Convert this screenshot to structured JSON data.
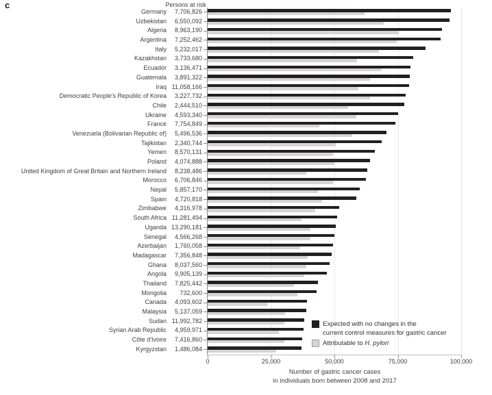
{
  "figure": {
    "panel_label": "c",
    "column_header": "Persons at risk"
  },
  "chart_data": {
    "type": "bar",
    "orientation": "horizontal",
    "panel_label": "c",
    "column_header": "Persons at risk",
    "xlabel_line1": "Number of gastric cancer cases",
    "xlabel_line2": "in individuals born between 2008 and 2017",
    "xlim": [
      0,
      100000
    ],
    "xticks": [
      0,
      25000,
      50000,
      75000,
      100000
    ],
    "xtick_labels": [
      "0",
      "25,000",
      "50,000",
      "75,000",
      "100,000"
    ],
    "grid": "vertical light gridlines at each x tick",
    "legend_position": "bottom-right inside plot",
    "series_names": [
      "Expected with no changes in the current control measures for gastric cancer",
      "Attributable to H. pylori"
    ],
    "legend": [
      {
        "line1": "Expected with no changes in the",
        "line2": "current control measures for gastric cancer",
        "color": "#231f20"
      },
      {
        "prefix": "Attributable to",
        "italic": "H. pylori",
        "color": "#d4d4d4"
      }
    ],
    "colors": {
      "expected": "#231f20",
      "attributable": "#d4d4d4",
      "gridline": "#e8e8e8",
      "axis": "#8a8a8a",
      "text": "#3d3d3d"
    },
    "rows": [
      {
        "name": "Germany",
        "persons_at_risk": "7,706,826",
        "expected": 96000,
        "attributable": 62000
      },
      {
        "name": "Uzbekistan",
        "persons_at_risk": "6,550,092",
        "expected": 95500,
        "attributable": 69500
      },
      {
        "name": "Algeria",
        "persons_at_risk": "8,963,190",
        "expected": 92500,
        "attributable": 75500
      },
      {
        "name": "Argentina",
        "persons_at_risk": "7,252,462",
        "expected": 92000,
        "attributable": 74500
      },
      {
        "name": "Italy",
        "persons_at_risk": "5,232,017",
        "expected": 85800,
        "attributable": 67500
      },
      {
        "name": "Kazakhstan",
        "persons_at_risk": "3,733,680",
        "expected": 81000,
        "attributable": 59000
      },
      {
        "name": "Ecuador",
        "persons_at_risk": "3,136,471",
        "expected": 80000,
        "attributable": 68500
      },
      {
        "name": "Guatemala",
        "persons_at_risk": "3,891,322",
        "expected": 79800,
        "attributable": 64000
      },
      {
        "name": "Iraq",
        "persons_at_risk": "11,058,166",
        "expected": 79500,
        "attributable": 59500
      },
      {
        "name": "Democratic People's Republic of Korea",
        "persons_at_risk": "3,227,732",
        "expected": 78000,
        "attributable": 64000
      },
      {
        "name": "Chile",
        "persons_at_risk": "2,444,510",
        "expected": 77500,
        "attributable": 55500
      },
      {
        "name": "Ukraine",
        "persons_at_risk": "4,593,340",
        "expected": 75000,
        "attributable": 58500
      },
      {
        "name": "France",
        "persons_at_risk": "7,754,849",
        "expected": 74000,
        "attributable": 44000
      },
      {
        "name": "Venezuela (Bolivarian Republic of)",
        "persons_at_risk": "5,496,536",
        "expected": 70500,
        "attributable": 57000
      },
      {
        "name": "Tajikistan",
        "persons_at_risk": "2,340,744",
        "expected": 68500,
        "attributable": 50500
      },
      {
        "name": "Yemen",
        "persons_at_risk": "8,570,131",
        "expected": 66000,
        "attributable": 49500
      },
      {
        "name": "Poland",
        "persons_at_risk": "4,074,888",
        "expected": 64000,
        "attributable": 50000
      },
      {
        "name": "United Kingdom of Great Britain and Northern Ireland",
        "persons_at_risk": "8,238,486",
        "expected": 63000,
        "attributable": 39000
      },
      {
        "name": "Morocco",
        "persons_at_risk": "6,706,846",
        "expected": 62500,
        "attributable": 49500
      },
      {
        "name": "Nepal",
        "persons_at_risk": "5,857,170",
        "expected": 60000,
        "attributable": 43500
      },
      {
        "name": "Spain",
        "persons_at_risk": "4,720,818",
        "expected": 58500,
        "attributable": 45000
      },
      {
        "name": "Zimbabwe",
        "persons_at_risk": "4,316,978",
        "expected": 52000,
        "attributable": 42500
      },
      {
        "name": "South Africa",
        "persons_at_risk": "11,281,494",
        "expected": 51000,
        "attributable": 37000
      },
      {
        "name": "Uganda",
        "persons_at_risk": "13,290,181",
        "expected": 50500,
        "attributable": 40500
      },
      {
        "name": "Senegal",
        "persons_at_risk": "4,566,268",
        "expected": 50000,
        "attributable": 40500
      },
      {
        "name": "Azerbaijan",
        "persons_at_risk": "1,760,058",
        "expected": 49500,
        "attributable": 36500
      },
      {
        "name": "Madagascar",
        "persons_at_risk": "7,356,848",
        "expected": 49000,
        "attributable": 39500
      },
      {
        "name": "Ghana",
        "persons_at_risk": "8,037,560",
        "expected": 48000,
        "attributable": 39000
      },
      {
        "name": "Angola",
        "persons_at_risk": "9,905,139",
        "expected": 47000,
        "attributable": 38000
      },
      {
        "name": "Thailand",
        "persons_at_risk": "7,825,442",
        "expected": 43500,
        "attributable": 34000
      },
      {
        "name": "Mongolia",
        "persons_at_risk": "732,600",
        "expected": 43000,
        "attributable": 35500
      },
      {
        "name": "Canada",
        "persons_at_risk": "4,093,602",
        "expected": 39200,
        "attributable": 23500
      },
      {
        "name": "Malaysia",
        "persons_at_risk": "5,137,059",
        "expected": 38900,
        "attributable": 30500
      },
      {
        "name": "Sudan",
        "persons_at_risk": "11,992,782",
        "expected": 38000,
        "attributable": 30200
      },
      {
        "name": "Syrian Arab Republic",
        "persons_at_risk": "4,959,971",
        "expected": 37800,
        "attributable": 28000
      },
      {
        "name": "Côte d'Ivoire",
        "persons_at_risk": "7,416,860",
        "expected": 37300,
        "attributable": 30200
      },
      {
        "name": "Kyrgyzstan",
        "persons_at_risk": "1,486,084",
        "expected": 37000,
        "attributable": 27000
      }
    ]
  }
}
